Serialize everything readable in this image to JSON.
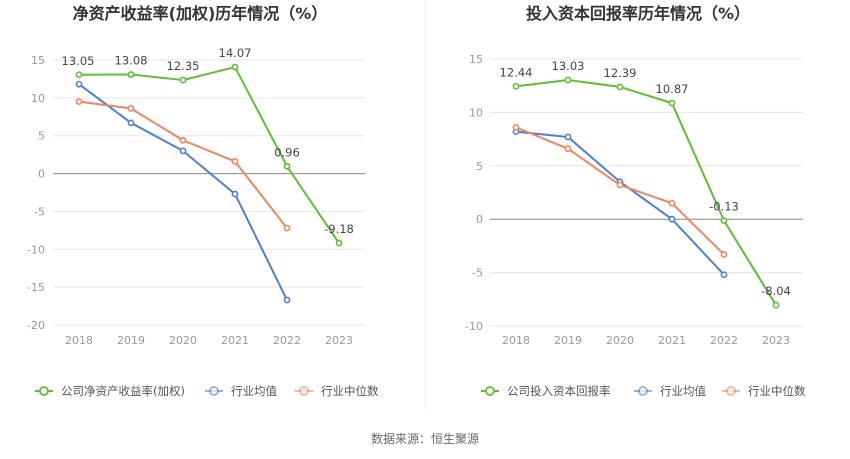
{
  "charts": [
    {
      "title": "净资产收益率(加权)历年情况（%）",
      "categories": [
        "2018",
        "2019",
        "2020",
        "2021",
        "2022",
        "2023"
      ],
      "yticks": [
        15,
        10,
        5,
        0,
        -5,
        -10,
        -15,
        -20
      ],
      "ylim": [
        -20,
        15
      ],
      "series": [
        {
          "name": "公司净资产收益率(加权)",
          "color": "#5cc12e",
          "values": [
            13.05,
            13.08,
            12.35,
            14.07,
            0.96,
            -9.18
          ],
          "labels": [
            "13.05",
            "13.08",
            "12.35",
            "14.07",
            "0.96",
            "-9.18"
          ]
        },
        {
          "name": "行业均值",
          "color": "#4a7fdb",
          "values": [
            11.8,
            6.7,
            3.0,
            -2.7,
            -16.7,
            null
          ]
        },
        {
          "name": "行业中位数",
          "color": "#f2845c",
          "values": [
            9.5,
            8.6,
            4.4,
            1.6,
            -7.2,
            null
          ]
        }
      ]
    },
    {
      "title": "投入资本回报率历年情况（%）",
      "categories": [
        "2018",
        "2019",
        "2020",
        "2021",
        "2022",
        "2023"
      ],
      "yticks": [
        15,
        10,
        5,
        0,
        -5,
        -10
      ],
      "ylim": [
        -10,
        15
      ],
      "series": [
        {
          "name": "公司投入资本回报率",
          "color": "#5cc12e",
          "values": [
            12.44,
            13.03,
            12.39,
            10.87,
            -0.13,
            -8.04
          ],
          "labels": [
            "12.44",
            "13.03",
            "12.39",
            "10.87",
            "-0.13",
            "-8.04"
          ]
        },
        {
          "name": "行业均值",
          "color": "#4a7fdb",
          "values": [
            8.2,
            7.7,
            3.5,
            0.0,
            -5.2,
            null
          ]
        },
        {
          "name": "行业中位数",
          "color": "#f2845c",
          "values": [
            8.6,
            6.6,
            3.2,
            1.5,
            -3.3,
            null
          ]
        }
      ]
    }
  ],
  "chart_data": [
    {
      "type": "line",
      "title": "净资产收益率(加权)历年情况（%）",
      "x": [
        "2018",
        "2019",
        "2020",
        "2021",
        "2022",
        "2023"
      ],
      "ylim": [
        -20,
        15
      ],
      "series": [
        {
          "name": "公司净资产收益率(加权)",
          "values": [
            13.05,
            13.08,
            12.35,
            14.07,
            0.96,
            -9.18
          ]
        },
        {
          "name": "行业均值",
          "values": [
            11.8,
            6.7,
            3.0,
            -2.7,
            -16.7,
            null
          ]
        },
        {
          "name": "行业中位数",
          "values": [
            9.5,
            8.6,
            4.4,
            1.6,
            -7.2,
            null
          ]
        }
      ]
    },
    {
      "type": "line",
      "title": "投入资本回报率历年情况（%）",
      "x": [
        "2018",
        "2019",
        "2020",
        "2021",
        "2022",
        "2023"
      ],
      "ylim": [
        -10,
        15
      ],
      "series": [
        {
          "name": "公司投入资本回报率",
          "values": [
            12.44,
            13.03,
            12.39,
            10.87,
            -0.13,
            -8.04
          ]
        },
        {
          "name": "行业均值",
          "values": [
            8.2,
            7.7,
            3.5,
            0.0,
            -5.2,
            null
          ]
        },
        {
          "name": "行业中位数",
          "values": [
            8.6,
            6.6,
            3.2,
            1.5,
            -3.3,
            null
          ]
        }
      ]
    }
  ],
  "footer": {
    "source": "数据来源：恒生聚源"
  }
}
